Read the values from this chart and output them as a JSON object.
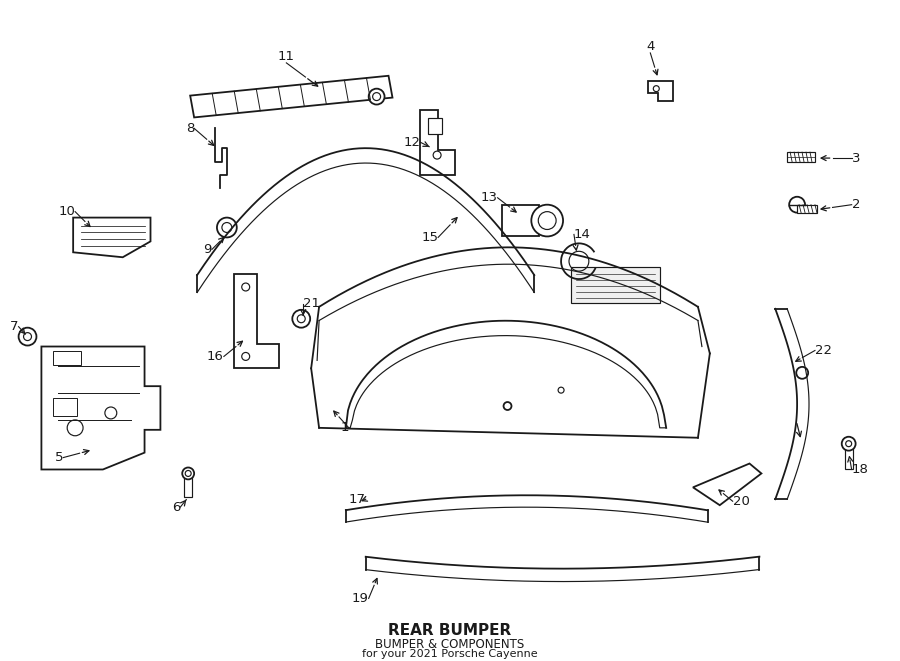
{
  "bg_color": "#ffffff",
  "line_color": "#1a1a1a",
  "title": "REAR BUMPER",
  "subtitle": "BUMPER & COMPONENTS",
  "vehicle": "for your 2021 Porsche Cayenne",
  "lw": 1.3,
  "lw2": 0.85
}
